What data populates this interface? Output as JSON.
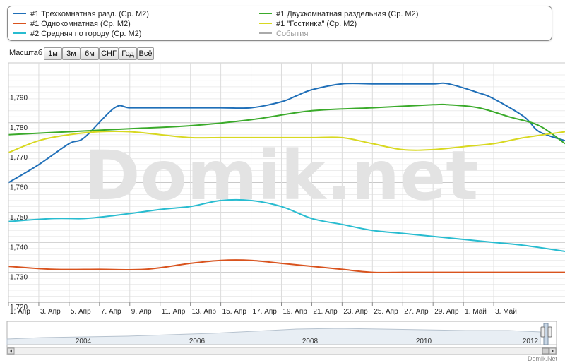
{
  "legend": {
    "items": [
      {
        "label": "#1 Трехкомнатная разд. (Ср. М2)",
        "color": "#1f6fb8",
        "enabled": true
      },
      {
        "label": "#1 Однокомнатная (Ср. М2)",
        "color": "#d9531e",
        "enabled": true
      },
      {
        "label": "#2 Средняя по городу (Ср. М2)",
        "color": "#28bcd0",
        "enabled": true
      },
      {
        "label": "#1 Двухкомнатная раздельная (Ср. М2)",
        "color": "#3aaa2a",
        "enabled": true
      },
      {
        "label": "#1 \"Гостинка\" (Ср. М2)",
        "color": "#d8d820",
        "enabled": true
      },
      {
        "label": "События",
        "color": "#aaaaaa",
        "enabled": false
      }
    ]
  },
  "toolbar": {
    "label": "Масштаб",
    "buttons": [
      "1м",
      "3м",
      "6м",
      "СНГ",
      "Год",
      "Всё"
    ]
  },
  "watermark": "Domik.net",
  "credits": "Domik.Net",
  "navigator": {
    "year_labels": [
      "2004",
      "2006",
      "2008",
      "2010",
      "2012"
    ]
  },
  "chart_data": {
    "type": "line",
    "ylim": [
      1720,
      1800
    ],
    "y_ticks": [
      "1,720",
      "1,730",
      "1,740",
      "1,750",
      "1,760",
      "1,770",
      "1,780",
      "1,790"
    ],
    "x_ticks": [
      "1. Апр",
      "3. Апр",
      "5. Апр",
      "7. Апр",
      "9. Апр",
      "11. Апр",
      "13. Апр",
      "15. Апр",
      "17. Апр",
      "19. Апр",
      "21. Апр",
      "23. Апр",
      "25. Апр",
      "27. Апр",
      "29. Апр",
      "1. Май",
      "3. Май"
    ],
    "x_range_days": [
      0,
      36.7
    ],
    "grid": true,
    "legend_position": "top",
    "series": [
      {
        "name": "#1 Трехкомнатная разд. (Ср. М2)",
        "color": "#1f6fb8",
        "x": [
          0,
          2,
          4,
          5,
          7,
          8,
          10,
          12,
          14,
          16,
          18,
          19,
          20,
          22,
          24,
          26,
          28,
          29,
          31,
          32,
          34,
          35,
          36.7
        ],
        "y": [
          1760,
          1766,
          1773,
          1775,
          1785,
          1785,
          1785,
          1785,
          1785,
          1785,
          1787,
          1789,
          1791,
          1793,
          1793,
          1793,
          1793,
          1793,
          1790,
          1788,
          1782,
          1777,
          1774
        ]
      },
      {
        "name": "#1 Двухкомнатная раздельная (Ср. М2)",
        "color": "#3aaa2a",
        "x": [
          0,
          4,
          8,
          12,
          16,
          20,
          24,
          28,
          29,
          31,
          33,
          35,
          36.7
        ],
        "y": [
          1776,
          1777,
          1778,
          1779,
          1781,
          1784,
          1785,
          1786,
          1786,
          1785,
          1782,
          1779,
          1773
        ]
      },
      {
        "name": "#1 \"Гостинка\" (Ср. М2)",
        "color": "#d8d820",
        "x": [
          0,
          2,
          4,
          6,
          8,
          10,
          12,
          14,
          16,
          18,
          20,
          22,
          24,
          26,
          28,
          30,
          32,
          34,
          36.7
        ],
        "y": [
          1770,
          1774,
          1776,
          1777,
          1777,
          1776,
          1775,
          1775,
          1775,
          1775,
          1775,
          1775,
          1773,
          1771,
          1771,
          1772,
          1773,
          1775,
          1777
        ]
      },
      {
        "name": "#2 Средняя по городу (Ср. М2)",
        "color": "#28bcd0",
        "x": [
          0,
          3,
          5,
          7,
          10,
          12,
          14,
          16,
          18,
          20,
          22,
          24,
          26,
          28,
          30,
          32,
          34,
          36.7
        ],
        "y": [
          1747,
          1748,
          1748,
          1749,
          1751,
          1752,
          1754,
          1754,
          1752,
          1748,
          1746,
          1744,
          1743,
          1742,
          1741,
          1740,
          1739,
          1737
        ]
      },
      {
        "name": "#1 Однокомнатная (Ср. М2)",
        "color": "#d9531e",
        "x": [
          0,
          3,
          6,
          9,
          12,
          14,
          16,
          18,
          20,
          22,
          24,
          26,
          28,
          30,
          32,
          34,
          36.7
        ],
        "y": [
          1732,
          1731,
          1731,
          1731,
          1733,
          1734,
          1734,
          1733,
          1732,
          1731,
          1730,
          1730,
          1730,
          1730,
          1730,
          1730,
          1730
        ]
      }
    ]
  }
}
